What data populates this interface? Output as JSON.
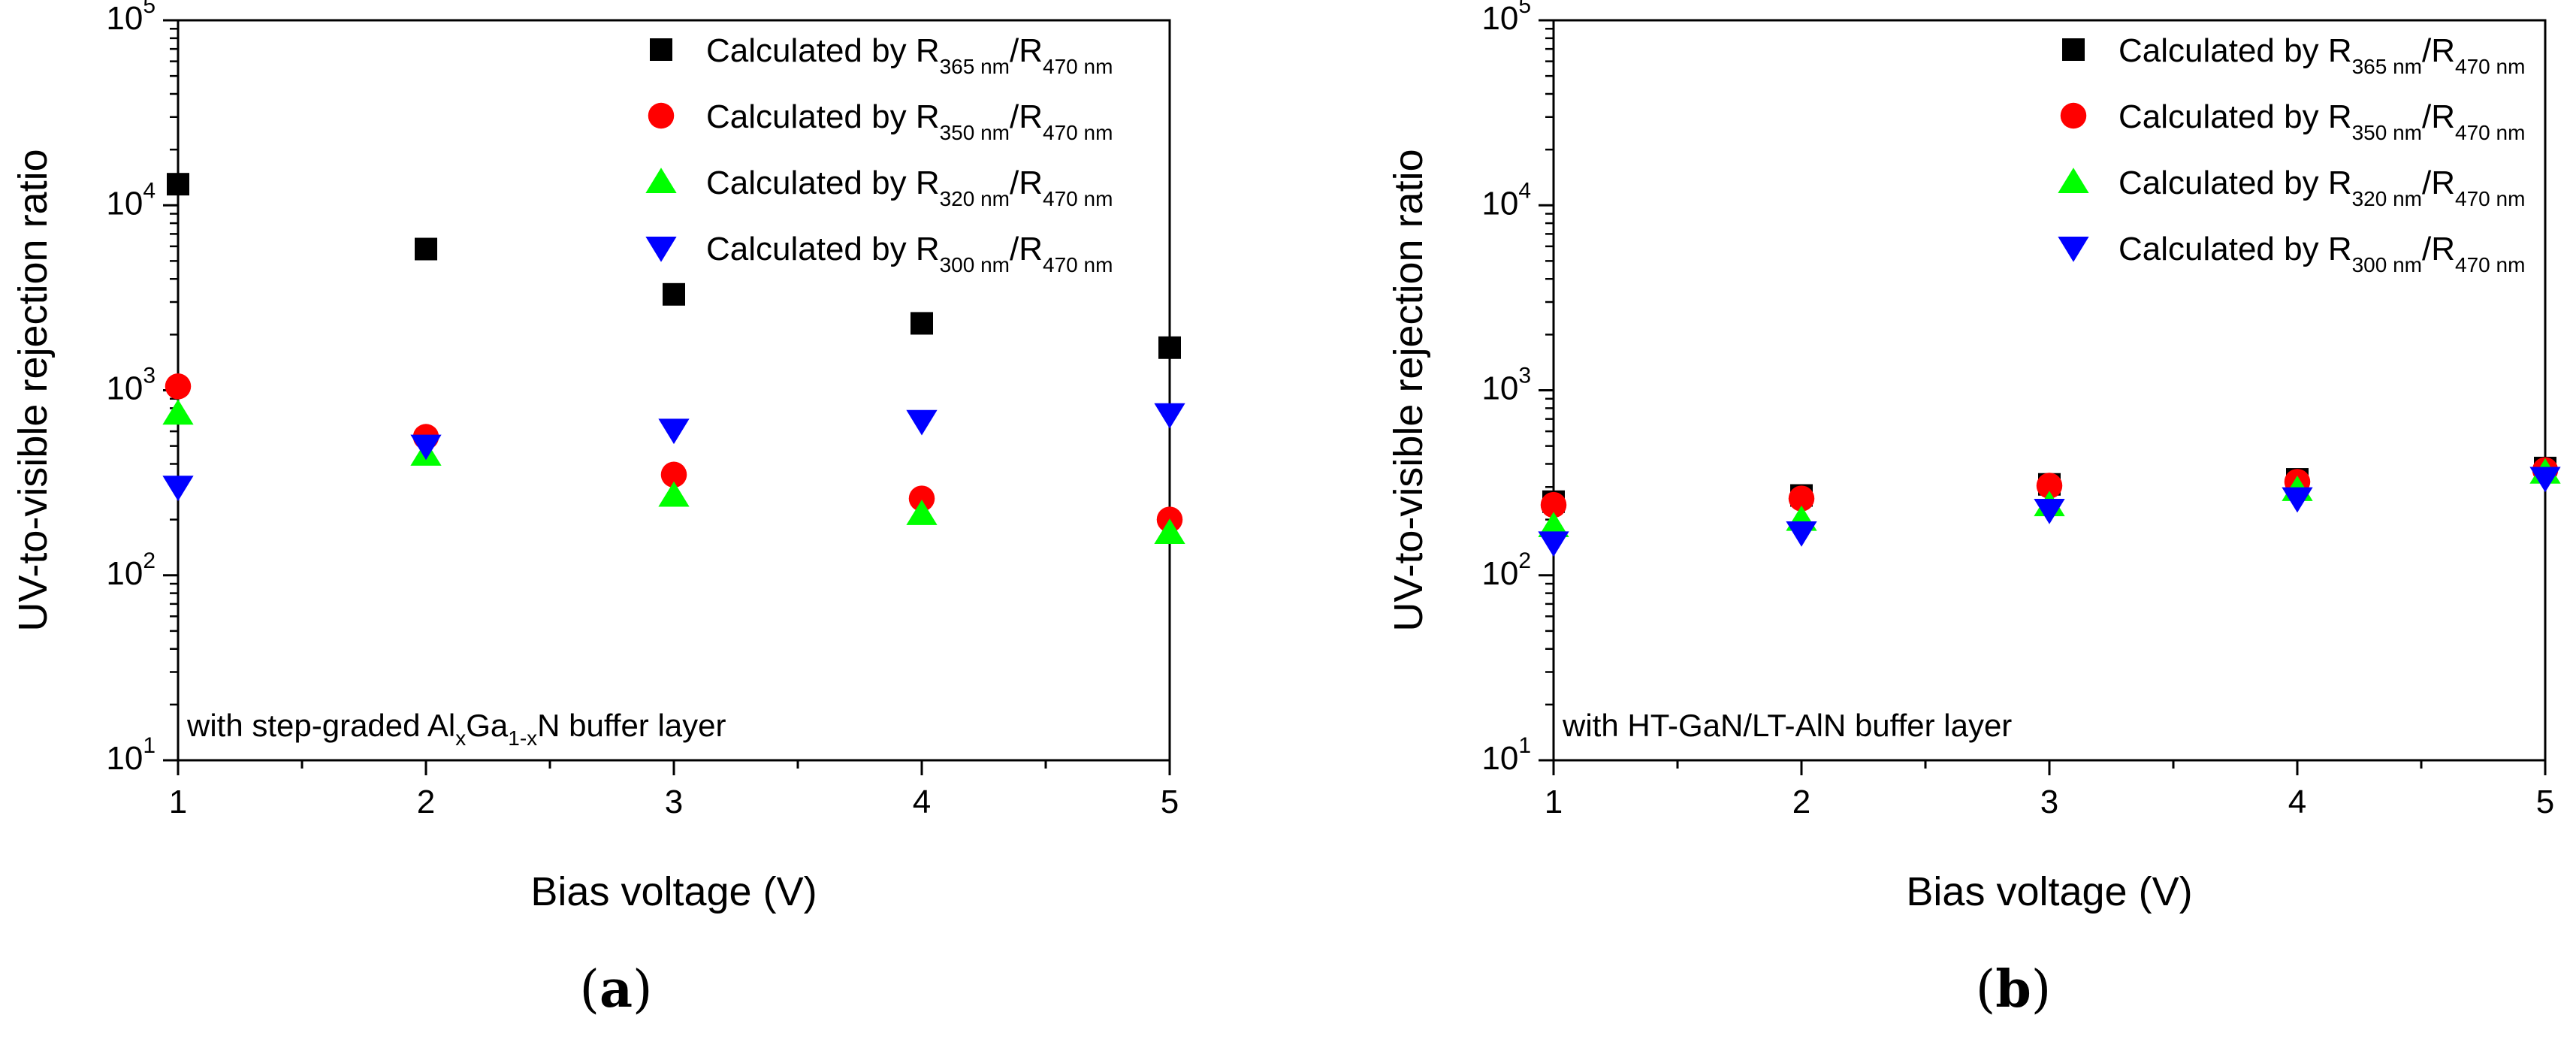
{
  "chart_data": [
    {
      "type": "scatter",
      "panel_label": "a",
      "xlabel": "Bias voltage (V)",
      "ylabel": "UV-to-visible rejection ratio",
      "y_scale": "log",
      "ylim": [
        10,
        100000
      ],
      "xlim": [
        1,
        5
      ],
      "x_ticks": [
        "1",
        "2",
        "3",
        "4",
        "5"
      ],
      "y_ticks": [
        {
          "base": "10",
          "exp": "1"
        },
        {
          "base": "10",
          "exp": "2"
        },
        {
          "base": "10",
          "exp": "3"
        },
        {
          "base": "10",
          "exp": "4"
        },
        {
          "base": "10",
          "exp": "5"
        }
      ],
      "annotation": {
        "pre": "with step-graded Al",
        "sub1": "x",
        "mid": "Ga",
        "sub2": "1-x",
        "post": "N buffer layer"
      },
      "legend_position": "top-right",
      "x": [
        1,
        2,
        3,
        4,
        5
      ],
      "series": [
        {
          "name": "Calculated by R365 nm/R470 nm",
          "label_main": "Calculated by R",
          "sub_a": "365 nm",
          "slash": "/R",
          "sub_b": "470 nm",
          "marker": "square",
          "color": "#000000",
          "values": [
            13000,
            5800,
            3300,
            2300,
            1700
          ]
        },
        {
          "name": "Calculated by R350 nm/R470 nm",
          "label_main": "Calculated by R",
          "sub_a": "350 nm",
          "slash": "/R",
          "sub_b": "470 nm",
          "marker": "circle",
          "color": "#ff0000",
          "values": [
            1050,
            560,
            350,
            260,
            200
          ]
        },
        {
          "name": "Calculated by R320 nm/R470 nm",
          "label_main": "Calculated by R",
          "sub_a": "320 nm",
          "slash": "/R",
          "sub_b": "470 nm",
          "marker": "triangle-up",
          "color": "#00ff00",
          "values": [
            750,
            450,
            270,
            215,
            170
          ]
        },
        {
          "name": "Calculated by R300 nm/R470 nm",
          "label_main": "Calculated by R",
          "sub_a": "300 nm",
          "slash": "/R",
          "sub_b": "470 nm",
          "marker": "triangle-down",
          "color": "#0000ff",
          "values": [
            300,
            500,
            610,
            680,
            740
          ]
        }
      ]
    },
    {
      "type": "scatter",
      "panel_label": "b",
      "xlabel": "Bias voltage (V)",
      "ylabel": "UV-to-visible rejection ratio",
      "y_scale": "log",
      "ylim": [
        10,
        100000
      ],
      "xlim": [
        1,
        5
      ],
      "x_ticks": [
        "1",
        "2",
        "3",
        "4",
        "5"
      ],
      "y_ticks": [
        {
          "base": "10",
          "exp": "1"
        },
        {
          "base": "10",
          "exp": "2"
        },
        {
          "base": "10",
          "exp": "3"
        },
        {
          "base": "10",
          "exp": "4"
        },
        {
          "base": "10",
          "exp": "5"
        }
      ],
      "annotation": {
        "pre": "with HT-GaN/LT-AlN buffer layer",
        "sub1": "",
        "mid": "",
        "sub2": "",
        "post": ""
      },
      "legend_position": "top-right",
      "x": [
        1,
        2,
        3,
        4,
        5
      ],
      "series": [
        {
          "name": "Calculated by R365 nm/R470 nm",
          "label_main": "Calculated by R",
          "sub_a": "365 nm",
          "slash": "/R",
          "sub_b": "470 nm",
          "marker": "square",
          "color": "#000000",
          "values": [
            250,
            270,
            310,
            330,
            380
          ]
        },
        {
          "name": "Calculated by R350 nm/R470 nm",
          "label_main": "Calculated by R",
          "sub_a": "350 nm",
          "slash": "/R",
          "sub_b": "470 nm",
          "marker": "circle",
          "color": "#ff0000",
          "values": [
            240,
            260,
            305,
            320,
            370
          ]
        },
        {
          "name": "Calculated by R320 nm/R470 nm",
          "label_main": "Calculated by R",
          "sub_a": "320 nm",
          "slash": "/R",
          "sub_b": "470 nm",
          "marker": "triangle-up",
          "color": "#00ff00",
          "values": [
            185,
            200,
            240,
            290,
            360
          ]
        },
        {
          "name": "Calculated by R300 nm/R470 nm",
          "label_main": "Calculated by R",
          "sub_a": "300 nm",
          "slash": "/R",
          "sub_b": "470 nm",
          "marker": "triangle-down",
          "color": "#0000ff",
          "values": [
            150,
            170,
            225,
            260,
            335
          ]
        }
      ]
    }
  ]
}
